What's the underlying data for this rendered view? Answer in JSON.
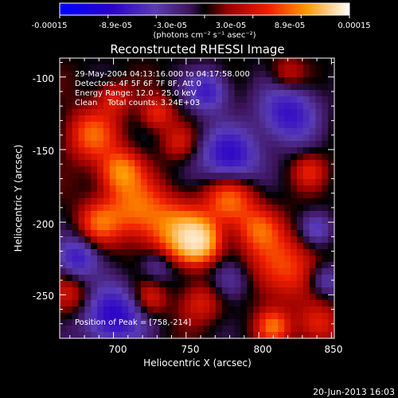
{
  "chart_data": {
    "type": "heatmap",
    "title": "Reconstructed RHESSI Image",
    "xlabel": "Heliocentric X (arcsec)",
    "ylabel": "Heliocentric Y (arcsec)",
    "xlim": [
      663,
      852
    ],
    "ylim": [
      -280,
      -87
    ],
    "x_ticks": [
      "700",
      "750",
      "800",
      "850"
    ],
    "y_ticks": [
      "-100",
      "-150",
      "-200",
      "-250"
    ],
    "colorbar": {
      "ticks": [
        "-0.00015",
        "-8.9e-05",
        "-3.0e-05",
        "3.0e-05",
        "8.9e-05",
        "0.00015"
      ],
      "unit_label": "(photons cm⁻² s⁻¹ asec⁻²)",
      "range": [
        -0.00015,
        0.00015
      ]
    },
    "annotations": [
      "29-May-2004 04:13:16.000 to 04:17:58.000",
      "Detectors: 4F 5F 6F 7F 8F, Att 0",
      "Energy Range: 12.0 - 25.0 keV",
      "Clean    Total counts: 3.24E+03"
    ],
    "peak_label": "Position of Peak = [758,-214]",
    "peak": [
      758,
      -214
    ],
    "components": [
      {
        "x": 758,
        "y": -213,
        "sigma": 10,
        "amp": 1.0
      },
      {
        "x": 742,
        "y": -205,
        "sigma": 14,
        "amp": 0.55
      },
      {
        "x": 705,
        "y": -165,
        "sigma": 10,
        "amp": 0.6
      },
      {
        "x": 685,
        "y": -140,
        "sigma": 12,
        "amp": 0.5
      },
      {
        "x": 715,
        "y": -190,
        "sigma": 14,
        "amp": 0.5
      },
      {
        "x": 690,
        "y": -200,
        "sigma": 10,
        "amp": 0.45
      },
      {
        "x": 780,
        "y": -185,
        "sigma": 12,
        "amp": 0.55
      },
      {
        "x": 815,
        "y": -230,
        "sigma": 16,
        "amp": 0.45
      },
      {
        "x": 800,
        "y": -205,
        "sigma": 10,
        "amp": 0.4
      },
      {
        "x": 840,
        "y": -270,
        "sigma": 10,
        "amp": 0.35
      },
      {
        "x": 810,
        "y": -272,
        "sigma": 8,
        "amp": 0.5
      },
      {
        "x": 760,
        "y": -255,
        "sigma": 10,
        "amp": 0.3
      },
      {
        "x": 730,
        "y": -125,
        "sigma": 8,
        "amp": 0.35
      },
      {
        "x": 700,
        "y": -115,
        "sigma": 8,
        "amp": 0.3
      },
      {
        "x": 725,
        "y": -253,
        "sigma": 8,
        "amp": 0.3
      },
      {
        "x": 670,
        "y": -250,
        "sigma": 10,
        "amp": 0.25
      },
      {
        "x": 835,
        "y": -165,
        "sigma": 8,
        "amp": 0.3
      },
      {
        "x": 745,
        "y": -145,
        "sigma": 8,
        "amp": 0.25
      },
      {
        "x": 820,
        "y": -98,
        "sigma": 8,
        "amp": 0.25
      },
      {
        "x": 780,
        "y": -155,
        "sigma": 14,
        "amp": -0.55
      },
      {
        "x": 820,
        "y": -125,
        "sigma": 14,
        "amp": -0.5
      },
      {
        "x": 765,
        "y": -110,
        "sigma": 10,
        "amp": -0.45
      },
      {
        "x": 700,
        "y": -265,
        "sigma": 14,
        "amp": -0.6
      },
      {
        "x": 675,
        "y": -225,
        "sigma": 10,
        "amp": -0.45
      },
      {
        "x": 780,
        "y": -240,
        "sigma": 10,
        "amp": -0.3
      },
      {
        "x": 840,
        "y": -205,
        "sigma": 8,
        "amp": -0.3
      },
      {
        "x": 730,
        "y": -230,
        "sigma": 8,
        "amp": -0.25
      },
      {
        "x": 845,
        "y": -240,
        "sigma": 8,
        "amp": -0.3
      }
    ],
    "grid": false
  },
  "footer_timestamp": "20-Jun-2013 16:03"
}
